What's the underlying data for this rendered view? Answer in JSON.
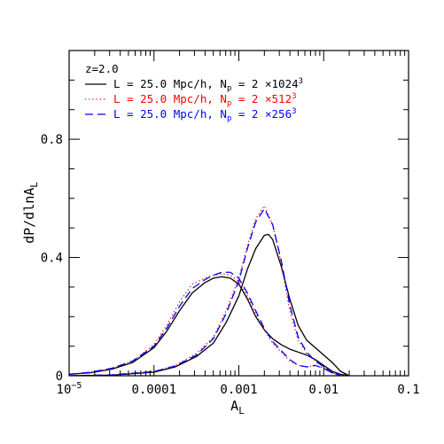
{
  "chart_data": {
    "type": "line",
    "xscale": "log",
    "xlim": [
      1e-05,
      0.1
    ],
    "ylim": [
      0,
      1.1
    ],
    "xlabel": "A_L",
    "ylabel": "dP/dlnA_L",
    "xticks": [
      {
        "value": 1e-05,
        "mantissa": "10",
        "exponent": "−5"
      },
      {
        "value": 0.0001,
        "label": "0.0001"
      },
      {
        "value": 0.001,
        "label": "0.001"
      },
      {
        "value": 0.01,
        "label": "0.01"
      },
      {
        "value": 0.1,
        "label": "0.1"
      }
    ],
    "yticks": [
      {
        "value": 0,
        "label": "0"
      },
      {
        "value": 0.4,
        "label": "0.4"
      },
      {
        "value": 0.8,
        "label": "0.8"
      }
    ],
    "grid": false,
    "legend": {
      "placement": "top-left",
      "redshift": "z=2.0",
      "entries": [
        {
          "prefix": "L = 25.0 Mpc/h, N",
          "sub": "p",
          "mid": " = 2 ×1024",
          "sup": "3",
          "color": "#000000",
          "style": "solid"
        },
        {
          "prefix": "L = 25.0 Mpc/h, N",
          "sub": "p",
          "mid": " = 2 ×512",
          "sup": "3",
          "color": "#ff0000",
          "style": "dotted"
        },
        {
          "prefix": "L = 25.0 Mpc/h, N",
          "sub": "p",
          "mid": " = 2 ×256",
          "sup": "3",
          "color": "#0000ff",
          "style": "dashed"
        }
      ]
    },
    "series": [
      {
        "run": "1024^3",
        "component": "broad",
        "color": "#000000",
        "style": "solid",
        "x": [
          1e-05,
          1.78e-05,
          3.16e-05,
          5.62e-05,
          0.0001,
          0.000141,
          0.0002,
          0.000282,
          0.000398,
          0.000501,
          0.000631,
          0.000794,
          0.001,
          0.00126,
          0.00158,
          0.002,
          0.00251,
          0.00316,
          0.00398,
          0.00501,
          0.00631,
          0.00794,
          0.01,
          0.0126,
          0.0158,
          0.02
        ],
        "y": [
          0.005,
          0.01,
          0.022,
          0.045,
          0.095,
          0.15,
          0.22,
          0.28,
          0.315,
          0.33,
          0.335,
          0.33,
          0.31,
          0.26,
          0.2,
          0.155,
          0.125,
          0.105,
          0.09,
          0.08,
          0.07,
          0.055,
          0.035,
          0.015,
          0.005,
          0
        ]
      },
      {
        "run": "1024^3",
        "component": "peaked",
        "color": "#000000",
        "style": "solid",
        "x": [
          1e-05,
          3.16e-05,
          0.0001,
          0.000178,
          0.000316,
          0.0005,
          0.000708,
          0.001,
          0.00126,
          0.00158,
          0.002,
          0.00224,
          0.00251,
          0.00316,
          0.00398,
          0.00501,
          0.00631,
          0.00794,
          0.01,
          0.0126,
          0.0158,
          0.02
        ],
        "y": [
          0,
          0.002,
          0.012,
          0.03,
          0.065,
          0.11,
          0.18,
          0.27,
          0.36,
          0.43,
          0.475,
          0.478,
          0.46,
          0.37,
          0.26,
          0.17,
          0.12,
          0.095,
          0.07,
          0.045,
          0.015,
          0
        ]
      },
      {
        "run": "512^3",
        "component": "broad",
        "color": "#ff0000",
        "style": "dotted",
        "x": [
          1e-05,
          1.78e-05,
          3.16e-05,
          5.62e-05,
          0.0001,
          0.000141,
          0.0002,
          0.000282,
          0.000398,
          0.000501,
          0.000631,
          0.000794,
          0.001,
          0.00126,
          0.00158,
          0.002,
          0.00251,
          0.00316,
          0.00398,
          0.00501,
          0.00631,
          0.00794,
          0.01,
          0.0126,
          0.0158
        ],
        "y": [
          0.005,
          0.012,
          0.025,
          0.05,
          0.105,
          0.17,
          0.25,
          0.31,
          0.33,
          0.34,
          0.345,
          0.34,
          0.32,
          0.27,
          0.21,
          0.155,
          0.11,
          0.08,
          0.05,
          0.035,
          0.03,
          0.035,
          0.025,
          0.01,
          0
        ]
      },
      {
        "run": "512^3",
        "component": "peaked",
        "color": "#ff0000",
        "style": "dotted",
        "x": [
          1e-05,
          3.16e-05,
          0.0001,
          0.000178,
          0.000316,
          0.0005,
          0.000708,
          0.001,
          0.00126,
          0.00158,
          0.002,
          0.00251,
          0.00316,
          0.00398,
          0.00501,
          0.00631,
          0.00794,
          0.01,
          0.0126,
          0.0158
        ],
        "y": [
          0,
          0.003,
          0.015,
          0.035,
          0.075,
          0.13,
          0.22,
          0.33,
          0.44,
          0.53,
          0.575,
          0.51,
          0.38,
          0.22,
          0.12,
          0.075,
          0.05,
          0.03,
          0.01,
          0
        ]
      },
      {
        "run": "256^3",
        "component": "broad",
        "color": "#0000ff",
        "style": "dashed",
        "x": [
          1e-05,
          1.78e-05,
          3.16e-05,
          5.62e-05,
          0.0001,
          0.000141,
          0.0002,
          0.000282,
          0.000398,
          0.000501,
          0.000631,
          0.000794,
          0.001,
          0.00126,
          0.00158,
          0.002,
          0.00251,
          0.00316,
          0.00398,
          0.00501,
          0.00631,
          0.00794,
          0.01,
          0.0126,
          0.0158
        ],
        "y": [
          0.005,
          0.012,
          0.025,
          0.05,
          0.1,
          0.16,
          0.235,
          0.295,
          0.325,
          0.34,
          0.35,
          0.35,
          0.33,
          0.28,
          0.22,
          0.16,
          0.115,
          0.085,
          0.055,
          0.035,
          0.03,
          0.035,
          0.025,
          0.01,
          0
        ]
      },
      {
        "run": "256^3",
        "component": "peaked",
        "color": "#0000ff",
        "style": "dashed",
        "x": [
          1e-05,
          3.16e-05,
          0.0001,
          0.000178,
          0.000316,
          0.0005,
          0.000708,
          0.001,
          0.00126,
          0.00158,
          0.002,
          0.00251,
          0.00316,
          0.00398,
          0.00501,
          0.00631,
          0.00794,
          0.01,
          0.0126,
          0.0158
        ],
        "y": [
          0,
          0.003,
          0.014,
          0.033,
          0.07,
          0.125,
          0.21,
          0.32,
          0.43,
          0.52,
          0.565,
          0.51,
          0.39,
          0.24,
          0.13,
          0.08,
          0.05,
          0.03,
          0.01,
          0
        ]
      }
    ]
  }
}
